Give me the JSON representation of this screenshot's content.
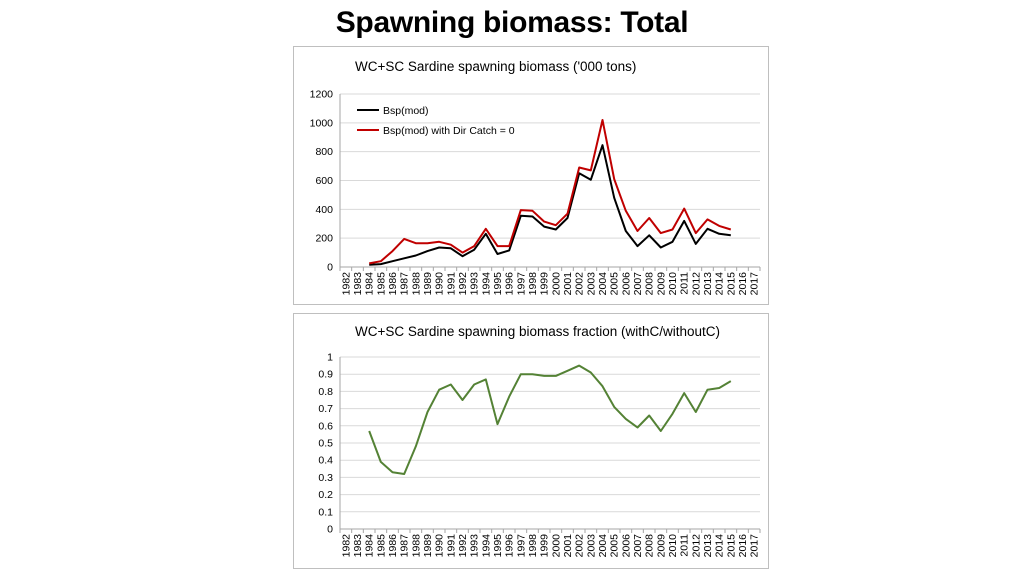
{
  "slide": {
    "title": "Spawning biomass: Total"
  },
  "colors": {
    "black": "#000000",
    "red": "#c00000",
    "green": "#548235",
    "grid": "#d9d9d9"
  },
  "chart_data": [
    {
      "type": "line",
      "title": "WC+SC Sardine spawning biomass ('000 tons)",
      "categories": [
        "1982",
        "1983",
        "1984",
        "1985",
        "1986",
        "1987",
        "1988",
        "1989",
        "1990",
        "1991",
        "1992",
        "1993",
        "1994",
        "1995",
        "1996",
        "1997",
        "1998",
        "1999",
        "2000",
        "2001",
        "2002",
        "2003",
        "2004",
        "2005",
        "2006",
        "2007",
        "2008",
        "2009",
        "2010",
        "2011",
        "2012",
        "2013",
        "2014",
        "2015",
        "2016",
        "2017"
      ],
      "ylim": [
        0,
        1200
      ],
      "yticks": [
        "0",
        "200",
        "400",
        "600",
        "800",
        "1000",
        "1200"
      ],
      "grid": true,
      "legend_position": "top-left",
      "series": [
        {
          "name": "Bsp(mod)",
          "color": "#000000",
          "values": [
            null,
            null,
            15,
            20,
            40,
            60,
            80,
            110,
            135,
            130,
            75,
            120,
            230,
            90,
            115,
            355,
            350,
            280,
            260,
            340,
            650,
            605,
            845,
            480,
            250,
            145,
            220,
            135,
            175,
            320,
            160,
            265,
            230,
            220,
            null,
            null
          ]
        },
        {
          "name": "Bsp(mod) with Dir Catch = 0",
          "color": "#c00000",
          "values": [
            null,
            null,
            25,
            40,
            110,
            195,
            165,
            165,
            175,
            155,
            100,
            145,
            265,
            145,
            145,
            395,
            390,
            315,
            290,
            370,
            690,
            670,
            1020,
            610,
            390,
            250,
            340,
            235,
            260,
            405,
            235,
            330,
            285,
            260,
            null,
            null
          ]
        }
      ]
    },
    {
      "type": "line",
      "title": "WC+SC Sardine spawning biomass fraction (withC/withoutC)",
      "categories": [
        "1982",
        "1983",
        "1984",
        "1985",
        "1986",
        "1987",
        "1988",
        "1989",
        "1990",
        "1991",
        "1992",
        "1993",
        "1994",
        "1995",
        "1996",
        "1997",
        "1998",
        "1999",
        "2000",
        "2001",
        "2002",
        "2003",
        "2004",
        "2005",
        "2006",
        "2007",
        "2008",
        "2009",
        "2010",
        "2011",
        "2012",
        "2013",
        "2014",
        "2015",
        "2016",
        "2017"
      ],
      "ylim": [
        0,
        1
      ],
      "yticks": [
        "0",
        "0.1",
        "0.2",
        "0.3",
        "0.4",
        "0.5",
        "0.6",
        "0.7",
        "0.8",
        "0.9",
        "1"
      ],
      "grid": true,
      "series": [
        {
          "color": "#548235",
          "values": [
            null,
            null,
            0.57,
            0.39,
            0.33,
            0.32,
            0.48,
            0.68,
            0.81,
            0.84,
            0.75,
            0.84,
            0.87,
            0.61,
            0.77,
            0.9,
            0.9,
            0.89,
            0.89,
            0.92,
            0.95,
            0.91,
            0.83,
            0.71,
            0.64,
            0.59,
            0.66,
            0.57,
            0.67,
            0.79,
            0.68,
            0.81,
            0.82,
            0.86,
            null,
            null
          ]
        }
      ]
    }
  ]
}
